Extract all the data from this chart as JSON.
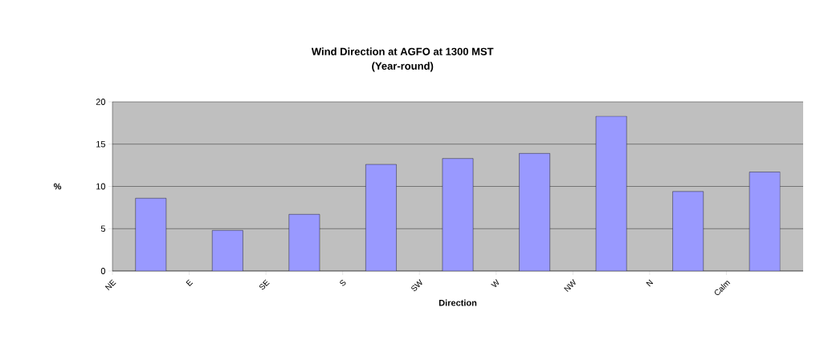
{
  "chart_data": {
    "type": "bar",
    "title": "Wind Direction at AGFO at 1300 MST\n(Year-round)",
    "xlabel": "Direction",
    "ylabel": "%",
    "categories": [
      "NE",
      "E",
      "SE",
      "S",
      "SW",
      "W",
      "NW",
      "N",
      "Calm"
    ],
    "values": [
      8.6,
      4.8,
      6.7,
      12.6,
      13.3,
      13.9,
      18.3,
      9.4,
      11.7
    ],
    "color": "#9999ff",
    "ylim": [
      0,
      20
    ],
    "yticks": [
      0,
      5,
      10,
      15,
      20
    ],
    "grid": "y"
  }
}
